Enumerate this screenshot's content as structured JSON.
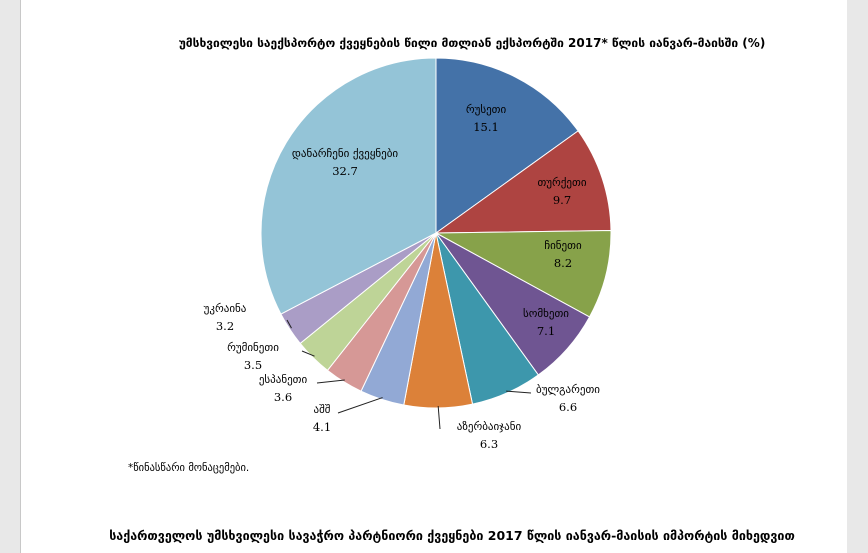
{
  "chart_data": {
    "type": "pie",
    "title": "უმსხვილესი საექსპორტო ქვეყნების წილი მთლიან ექსპორტში  2017* წლის იანვარ-მაისში (%)",
    "slices": [
      {
        "name": "რუსეთი",
        "value": 15.1,
        "color": "#4472a8"
      },
      {
        "name": "თურქეთი",
        "value": 9.7,
        "color": "#ae4441"
      },
      {
        "name": "ჩინეთი",
        "value": 8.2,
        "color": "#87a24a"
      },
      {
        "name": "სომხეთი",
        "value": 7.1,
        "color": "#6f5592"
      },
      {
        "name": "ბულგარეთი",
        "value": 6.6,
        "color": "#3d97ac"
      },
      {
        "name": "აზერბაიჯანი",
        "value": 6.3,
        "color": "#dc8139"
      },
      {
        "name": "აშშ",
        "value": 4.1,
        "color": "#92a9d5"
      },
      {
        "name": "ესპანეთი",
        "value": 3.6,
        "color": "#d69896"
      },
      {
        "name": "რუმინეთი",
        "value": 3.5,
        "color": "#bed497"
      },
      {
        "name": "უკრაინა",
        "value": 3.2,
        "color": "#aa9dc6"
      },
      {
        "name": "დანარჩენი ქვეყნები",
        "value": 32.7,
        "color": "#94c4d7"
      }
    ]
  },
  "footnote": "*წინასწარი მონაცემები.",
  "bottom_title": "საქართველოს უმსხვილესი სავაჭრო პარტნიორი ქვეყნები 2017 წლის იანვარ-მაისის იმპორტის მიხედვით"
}
